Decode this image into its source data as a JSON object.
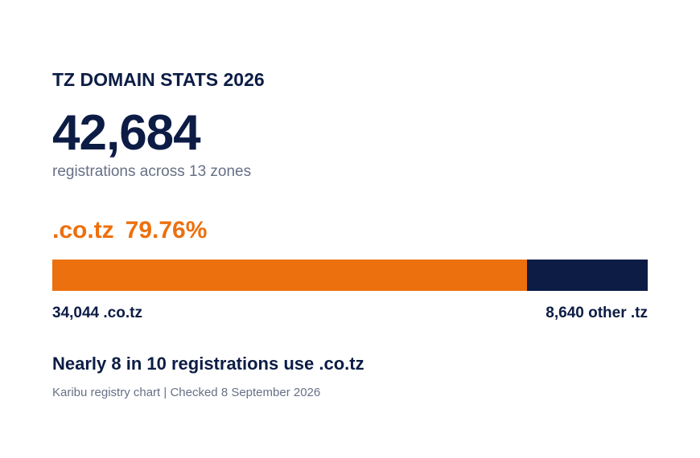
{
  "title": "TZ DOMAIN STATS 2026",
  "total": "42,684",
  "subtitle": "registrations across 13 zones",
  "share": {
    "zone": ".co.tz",
    "percent": "79.76%"
  },
  "labels": {
    "left": "34,044 .co.tz",
    "right": "8,640 other .tz"
  },
  "headline": "Nearly 8 in 10 registrations use .co.tz",
  "source": "Karibu registry chart | Checked 8 September 2026",
  "colors": {
    "accent": "#ec700e",
    "navy": "#0c1c45",
    "muted": "#667085"
  },
  "chart_data": {
    "type": "bar",
    "orientation": "horizontal-stacked",
    "title": "TZ DOMAIN STATS 2026",
    "categories": [
      ".co.tz",
      "other .tz"
    ],
    "values": [
      34044,
      8640
    ],
    "total": 42684,
    "share_percent": 79.76,
    "colors": [
      "#ec700e",
      "#0c1c45"
    ]
  }
}
